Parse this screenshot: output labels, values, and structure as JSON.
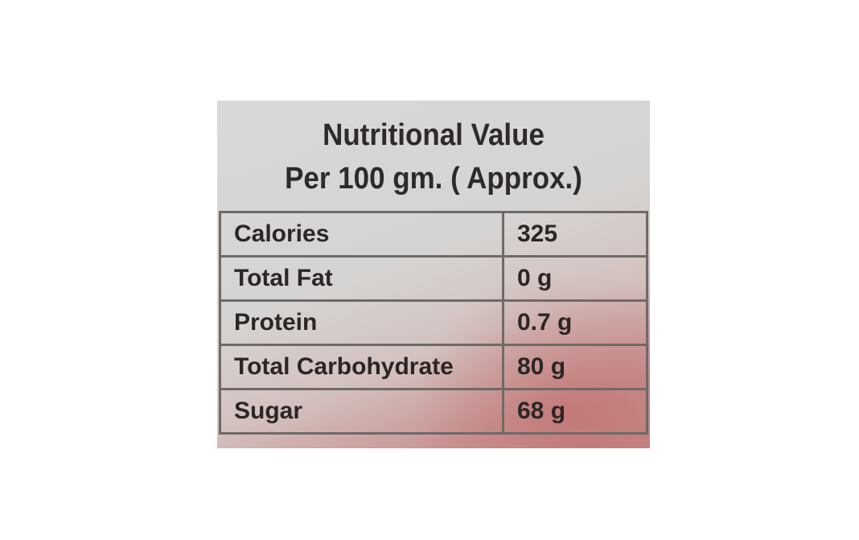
{
  "label": {
    "title": "Nutritional Value",
    "subtitle": "Per 100 gm. ( Approx.)",
    "rows": [
      {
        "nutrient": "Calories",
        "value": "325"
      },
      {
        "nutrient": "Total Fat",
        "value": "0 g"
      },
      {
        "nutrient": "Protein",
        "value": "0.7 g"
      },
      {
        "nutrient": "Total Carbohydrate",
        "value": "80 g"
      },
      {
        "nutrient": "Sugar",
        "value": "68 g"
      }
    ]
  }
}
